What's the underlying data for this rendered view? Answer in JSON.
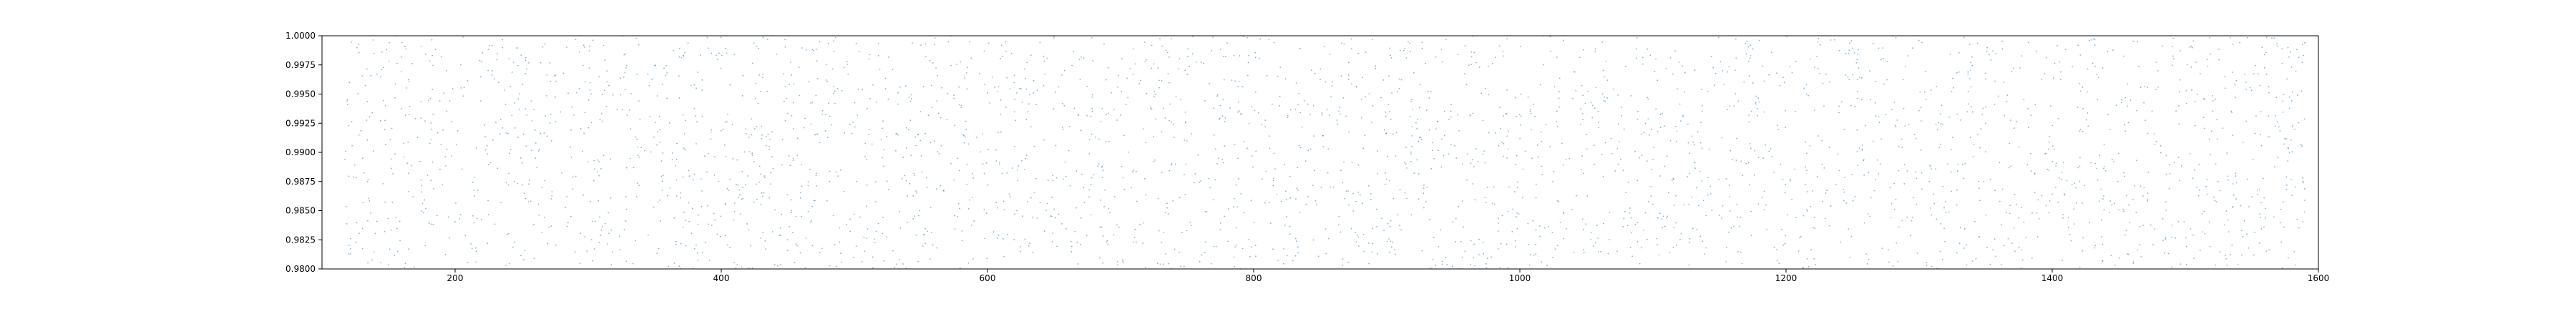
{
  "chart_data": {
    "type": "scatter",
    "title": "",
    "xlabel": "",
    "ylabel": "",
    "xlim": [
      100,
      1600
    ],
    "ylim": [
      0.98,
      1.0
    ],
    "grid": false,
    "legend": "none",
    "x_ticks": [
      200,
      400,
      600,
      800,
      1000,
      1200,
      1400,
      1600
    ],
    "x_tick_labels": [
      "200",
      "400",
      "600",
      "800",
      "1000",
      "1200",
      "1400",
      "1600"
    ],
    "y_ticks": [
      0.98,
      0.9825,
      0.985,
      0.9875,
      0.99,
      0.9925,
      0.995,
      0.9975,
      1.0
    ],
    "y_tick_labels": [
      "0.9800",
      "0.9825",
      "0.9850",
      "0.9875",
      "0.9900",
      "0.9925",
      "0.9950",
      "0.9975",
      "1.0000"
    ],
    "point_color": "#1f77b4",
    "series": [
      {
        "x_range": [
          117,
          1590
        ],
        "y_range": [
          0.98,
          1.0
        ],
        "point_count": 3200,
        "distribution": "uniform random scatter of small dots covering the full plotting area"
      }
    ]
  }
}
